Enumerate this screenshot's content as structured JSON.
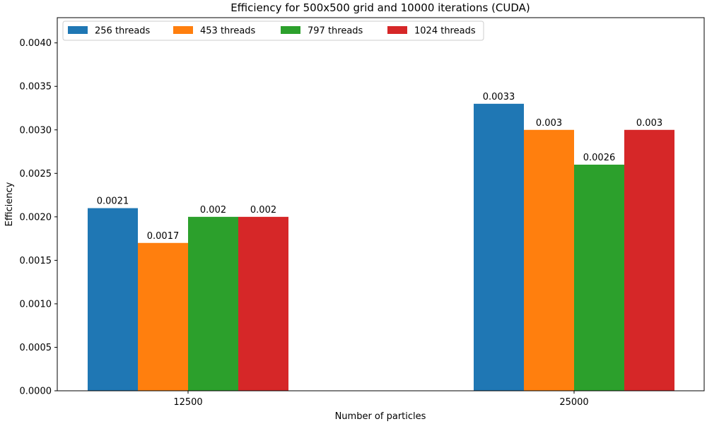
{
  "chart_data": {
    "type": "bar",
    "title": "Efficiency for 500x500 grid and 10000 iterations (CUDA)",
    "xlabel": "Number of particles",
    "ylabel": "Efficiency",
    "categories": [
      "12500",
      "25000"
    ],
    "series": [
      {
        "name": "256 threads",
        "color": "#1f77b4",
        "values": [
          0.0021,
          0.0033
        ],
        "labels": [
          "0.0021",
          "0.0033"
        ]
      },
      {
        "name": "453 threads",
        "color": "#ff7f0e",
        "values": [
          0.0017,
          0.003
        ],
        "labels": [
          "0.0017",
          "0.003"
        ]
      },
      {
        "name": "797 threads",
        "color": "#2ca02c",
        "values": [
          0.002,
          0.0026
        ],
        "labels": [
          "0.002",
          "0.0026"
        ]
      },
      {
        "name": "1024 threads",
        "color": "#d62728",
        "values": [
          0.002,
          0.003
        ],
        "labels": [
          "0.002",
          "0.003"
        ]
      }
    ],
    "ylim": [
      0,
      0.00429
    ],
    "yticks": [
      "0.0000",
      "0.0005",
      "0.0010",
      "0.0015",
      "0.0020",
      "0.0025",
      "0.0030",
      "0.0035",
      "0.0040"
    ],
    "ytick_values": [
      0,
      0.0005,
      0.001,
      0.0015,
      0.002,
      0.0025,
      0.003,
      0.0035,
      0.004
    ],
    "grid": false,
    "legend_position": "top-left"
  }
}
